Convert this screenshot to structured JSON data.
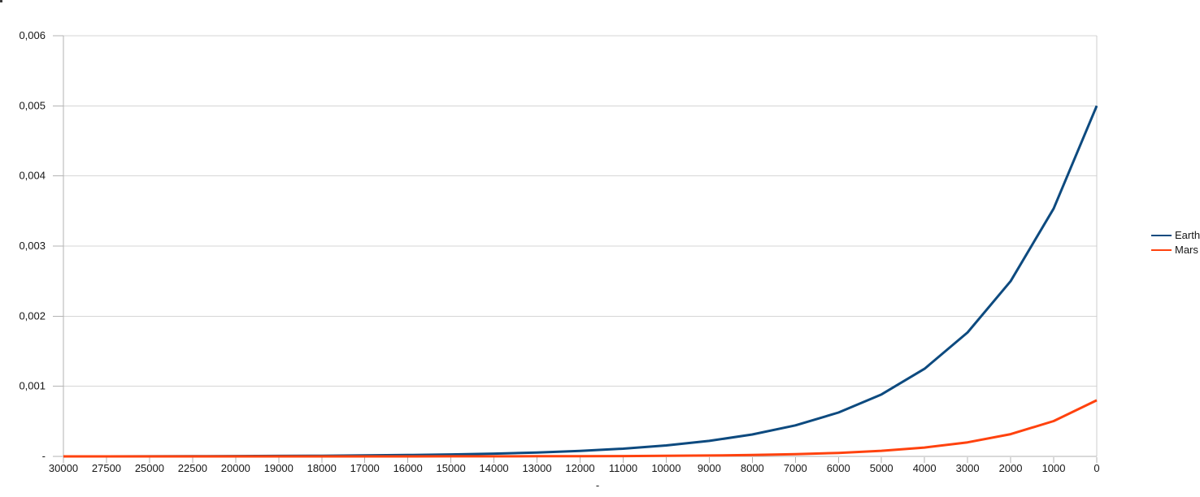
{
  "window": {
    "background": "#ffffff"
  },
  "colors": {
    "gridline": "#d6d6d6",
    "axis": "#b3b3b3",
    "plot_border": "#cccccc",
    "text": "#161616",
    "earth_series": "#0d4a7f",
    "mars_series": "#ff420e"
  },
  "chart_data": {
    "type": "line",
    "title": "",
    "xlabel": "-",
    "ylabel": "",
    "grid": true,
    "legend_position": "right",
    "ylim": [
      0,
      0.006
    ],
    "x_axis_direction": "descending categories, evenly spaced",
    "categories": [
      30000,
      27500,
      25000,
      22500,
      20000,
      19000,
      18000,
      17000,
      16000,
      15000,
      14000,
      13000,
      12000,
      11000,
      10000,
      9000,
      8000,
      7000,
      6000,
      5000,
      4000,
      3000,
      2000,
      1000,
      0
    ],
    "y_ticks": [
      {
        "label": "0,006",
        "value": 0.006
      },
      {
        "label": "0,005",
        "value": 0.005
      },
      {
        "label": "0,004",
        "value": 0.004
      },
      {
        "label": "0,003",
        "value": 0.003
      },
      {
        "label": "0,002",
        "value": 0.002
      },
      {
        "label": "0,001",
        "value": 0.001
      },
      {
        "label": "-",
        "value": 0
      }
    ],
    "series": [
      {
        "name": "Earth",
        "color": "#0d4a7f",
        "values": [
          2e-07,
          4e-07,
          9e-07,
          2.1e-06,
          4.9e-06,
          6.9e-06,
          9.8e-06,
          1.38e-05,
          1.95e-05,
          2.76e-05,
          3.91e-05,
          5.52e-05,
          7.81e-05,
          0.0001105,
          0.00015625,
          0.000221,
          0.0003125,
          0.0004419,
          0.000625,
          0.0008839,
          0.00125,
          0.0017678,
          0.0025,
          0.0035355,
          0.005
        ]
      },
      {
        "name": "Mars",
        "color": "#ff420e",
        "values": [
          0,
          0,
          0,
          0,
          1e-07,
          1e-07,
          2e-07,
          3e-07,
          5e-07,
          8e-07,
          1.2e-06,
          2e-06,
          3.1e-06,
          5e-06,
          7.9e-06,
          1.25e-05,
          1.98e-05,
          3.15e-05,
          5e-05,
          7.94e-05,
          0.000126,
          0.0002,
          0.000317,
          0.000504,
          0.0008
        ]
      }
    ]
  }
}
